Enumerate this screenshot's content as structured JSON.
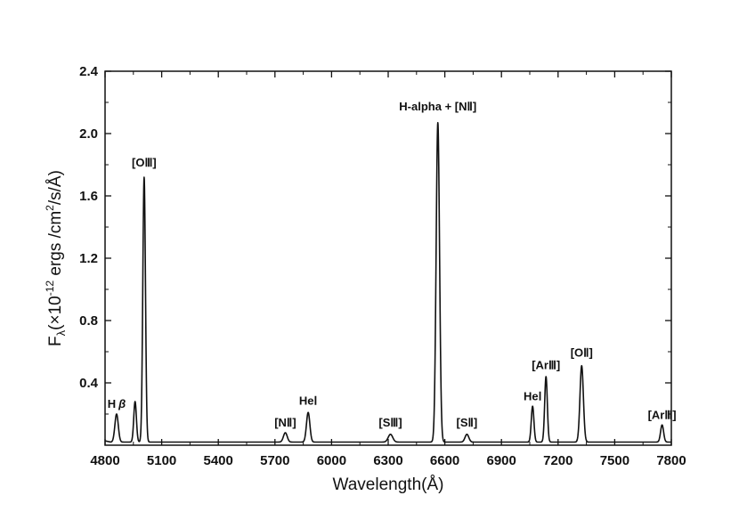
{
  "chart_data": {
    "type": "line",
    "title": "",
    "xlabel": "Wavelength(Å)",
    "ylabel_parts": {
      "F": "F",
      "lambda": "λ",
      "paren_open": "(×10",
      "exp1": "-12",
      "mid": " ergs /cm",
      "exp2": "2",
      "tail": "/s/Å)"
    },
    "xlim": [
      4800,
      7800
    ],
    "ylim": [
      0,
      2.4
    ],
    "x_ticks": [
      4800,
      5100,
      5400,
      5700,
      6000,
      6300,
      6600,
      6900,
      7200,
      7500,
      7800
    ],
    "y_ticks": [
      0.4,
      0.8,
      1.2,
      1.6,
      2.0,
      2.4
    ],
    "y_tick_labels": [
      "0.4",
      "0.8",
      "1.2",
      "1.6",
      "2.0",
      "2.4"
    ],
    "grid": false,
    "baseline": 0.02,
    "series": [
      {
        "color": "#111111",
        "lines": [
          {
            "center": 4861,
            "peak": 0.2,
            "width": 9
          },
          {
            "center": 4959,
            "peak": 0.28,
            "width": 7
          },
          {
            "center": 5007,
            "peak": 1.72,
            "width": 7
          },
          {
            "center": 5755,
            "peak": 0.08,
            "width": 10
          },
          {
            "center": 5876,
            "peak": 0.21,
            "width": 9
          },
          {
            "center": 6312,
            "peak": 0.07,
            "width": 12
          },
          {
            "center": 6563,
            "peak": 2.07,
            "width": 9
          },
          {
            "center": 6717,
            "peak": 0.07,
            "width": 10
          },
          {
            "center": 7065,
            "peak": 0.25,
            "width": 7
          },
          {
            "center": 7136,
            "peak": 0.44,
            "width": 7
          },
          {
            "center": 7325,
            "peak": 0.51,
            "width": 9
          },
          {
            "center": 7751,
            "peak": 0.13,
            "width": 8
          }
        ]
      }
    ],
    "annotations": [
      {
        "text": "H",
        "greek": "β",
        "x": 4861,
        "y": 0.24
      },
      {
        "text": "[OⅢ]",
        "x": 5007,
        "y": 1.79
      },
      {
        "text": "[NⅡ]",
        "x": 5755,
        "y": 0.12
      },
      {
        "text": "HeⅠ",
        "x": 5876,
        "y": 0.26
      },
      {
        "text": "[SⅢ]",
        "x": 6312,
        "y": 0.12
      },
      {
        "text": "H-alpha + [NⅡ]",
        "x": 6563,
        "y": 2.15
      },
      {
        "text": "[SⅡ]",
        "x": 6717,
        "y": 0.12
      },
      {
        "text": "HeⅠ",
        "x": 7065,
        "y": 0.29
      },
      {
        "text": "[ArⅢ]",
        "x": 7136,
        "y": 0.49
      },
      {
        "text": "[OⅡ]",
        "x": 7325,
        "y": 0.57
      },
      {
        "text": "[ArⅢ]",
        "x": 7751,
        "y": 0.17
      }
    ]
  }
}
